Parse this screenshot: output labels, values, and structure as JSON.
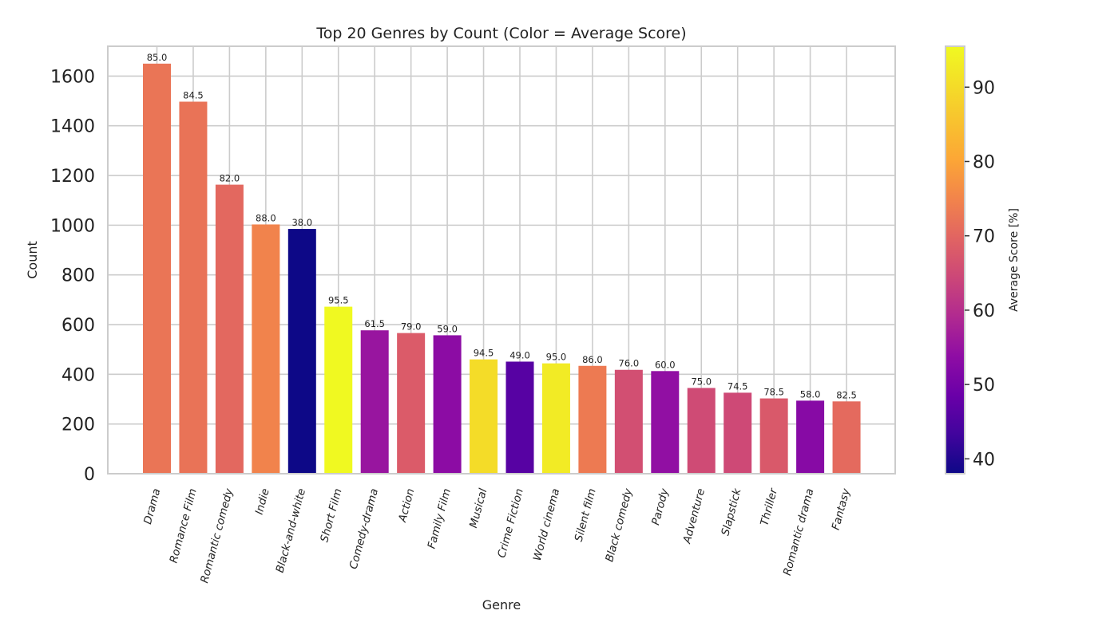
{
  "chart_data": {
    "type": "bar",
    "title": "Top 20 Genres by Count (Color = Average Score)",
    "xlabel": "Genre",
    "ylabel": "Count",
    "ylim": [
      0,
      1720
    ],
    "yticks": [
      0,
      200,
      400,
      600,
      800,
      1000,
      1200,
      1400,
      1600
    ],
    "grid": true,
    "colormap": "plasma",
    "colorbar": {
      "label": "Average Score [%]",
      "range": [
        38.0,
        95.5
      ],
      "ticks": [
        40,
        50,
        60,
        70,
        80,
        90
      ]
    },
    "categories": [
      "Drama",
      "Romance Film",
      "Romantic comedy",
      "Indie",
      "Black-and-white",
      "Short Film",
      "Comedy-drama",
      "Action",
      "Family Film",
      "Musical",
      "Crime Fiction",
      "World cinema",
      "Silent film",
      "Black comedy",
      "Parody",
      "Adventure",
      "Slapstick",
      "Thriller",
      "Romantic drama",
      "Fantasy"
    ],
    "values": [
      1650,
      1497,
      1163,
      1003,
      985,
      672,
      577,
      566,
      557,
      460,
      451,
      444,
      434,
      418,
      413,
      345,
      326,
      303,
      294,
      291
    ],
    "scores": [
      85.0,
      84.5,
      82.0,
      88.0,
      38.0,
      95.5,
      61.5,
      79.0,
      59.0,
      94.5,
      49.0,
      95.0,
      86.0,
      76.0,
      60.0,
      75.0,
      74.5,
      78.5,
      58.0,
      82.5
    ],
    "score_labels": [
      "85.0",
      "84.5",
      "82.0",
      "88.0",
      "38.0",
      "95.5",
      "61.5",
      "79.0",
      "59.0",
      "94.5",
      "49.0",
      "95.0",
      "86.0",
      "76.0",
      "60.0",
      "75.0",
      "74.5",
      "78.5",
      "58.0",
      "82.5"
    ]
  }
}
